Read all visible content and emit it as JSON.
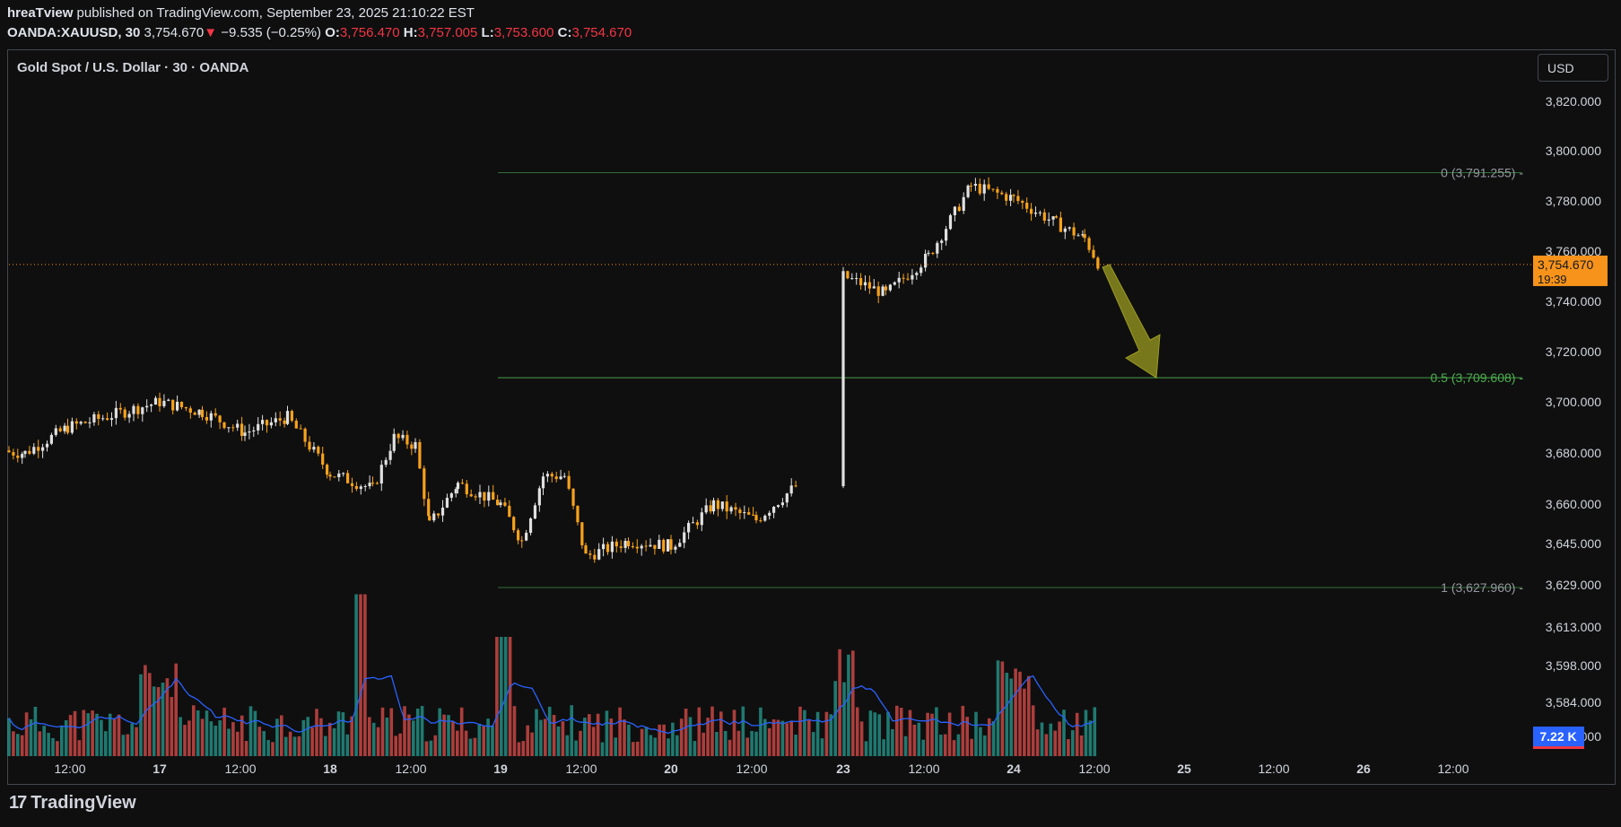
{
  "header": {
    "author": "hreaTview",
    "published_text": "published on TradingView.com, September 23, 2025 21:10:22 EST",
    "symbol": "OANDA:XAUUSD, 30",
    "last": "3,754.670",
    "change_arrow": "▼",
    "change": "−9.535 (−0.25%)",
    "o_label": "O:",
    "o": "3,756.470",
    "h_label": "H:",
    "h": "3,757.005",
    "l_label": "L:",
    "l": "3,753.600",
    "c_label": "C:",
    "c": "3,754.670"
  },
  "chart_title": "Gold Spot / U.S. Dollar · 30 · OANDA",
  "currency_button": "USD",
  "footer": {
    "brand": "TradingView"
  },
  "colors": {
    "bg": "#0f0f0f",
    "up": "#e0e0e0",
    "down": "#f7a21b",
    "fib_line": "#4caf50",
    "volume_up": "#26a69a",
    "volume_down": "#ef5350",
    "volume_ma": "#2962ff",
    "arrow": "#8a8a1e",
    "price_tag": "#f7931a"
  },
  "chart_data": {
    "type": "candlestick",
    "price_axis_ticks": [
      "3,820.000",
      "3,800.000",
      "3,780.000",
      "3,760.000",
      "3,740.000",
      "3,720.000",
      "3,700.000",
      "3,680.000",
      "3,660.000",
      "3,645.000",
      "3,629.000",
      "3,613.000",
      "3,598.000",
      "3,584.000",
      "3,570.000"
    ],
    "time_axis_ticks": [
      "12:00",
      "17",
      "12:00",
      "18",
      "12:00",
      "19",
      "12:00",
      "20",
      "12:00",
      "23",
      "12:00",
      "24",
      "12:00",
      "25",
      "12:00",
      "26",
      "12:00"
    ],
    "last_price_label": "3,754.670",
    "countdown_label": "19:39",
    "volume_label": "7.22 K",
    "fib_levels": [
      {
        "label": "0 (3,791.255)",
        "price": 3791.255
      },
      {
        "label": "0.5 (3,709.608)",
        "price": 3709.608
      },
      {
        "label": "1 (3,627.960)",
        "price": 3627.96
      }
    ],
    "price_path": [
      [
        "16 06:00",
        3681
      ],
      [
        "16 12:00",
        3680
      ],
      [
        "16 18:00",
        3690
      ],
      [
        "17 00:00",
        3700
      ],
      [
        "17 06:00",
        3696
      ],
      [
        "17 12:00",
        3688
      ],
      [
        "17 18:00",
        3694
      ],
      [
        "18 00:00",
        3672
      ],
      [
        "18 06:00",
        3666
      ],
      [
        "18 09:00",
        3686
      ],
      [
        "18 12:00",
        3683
      ],
      [
        "18 14:00",
        3652
      ],
      [
        "18 18:00",
        3668
      ],
      [
        "19 00:00",
        3660
      ],
      [
        "19 03:00",
        3646
      ],
      [
        "19 06:00",
        3671
      ],
      [
        "19 09:00",
        3671
      ],
      [
        "19 12:00",
        3640
      ],
      [
        "19 18:00",
        3646
      ],
      [
        "20 00:00",
        3644
      ],
      [
        "20 06:00",
        3660
      ],
      [
        "20 12:00",
        3654
      ],
      [
        "20 18:00",
        3668
      ],
      [
        "21 00:00",
        3683
      ],
      [
        "21 06:00",
        3693
      ],
      [
        "21 12:00",
        3700
      ],
      [
        "21 18:00",
        3714
      ],
      [
        "22 00:00",
        3726
      ],
      [
        "22 06:00",
        3723
      ],
      [
        "22 12:00",
        3740
      ],
      [
        "22 18:00",
        3748
      ],
      [
        "23 00:00",
        3750
      ],
      [
        "23 06:00",
        3743
      ],
      [
        "23 12:00",
        3758
      ],
      [
        "23 18:00",
        3786
      ],
      [
        "24 00:00",
        3781
      ],
      [
        "24 06:00",
        3771
      ],
      [
        "24 10:00",
        3765
      ],
      [
        "24 12:00",
        3754.67
      ]
    ],
    "projection": {
      "from_price": 3754.67,
      "to_price": 3709.608
    }
  }
}
